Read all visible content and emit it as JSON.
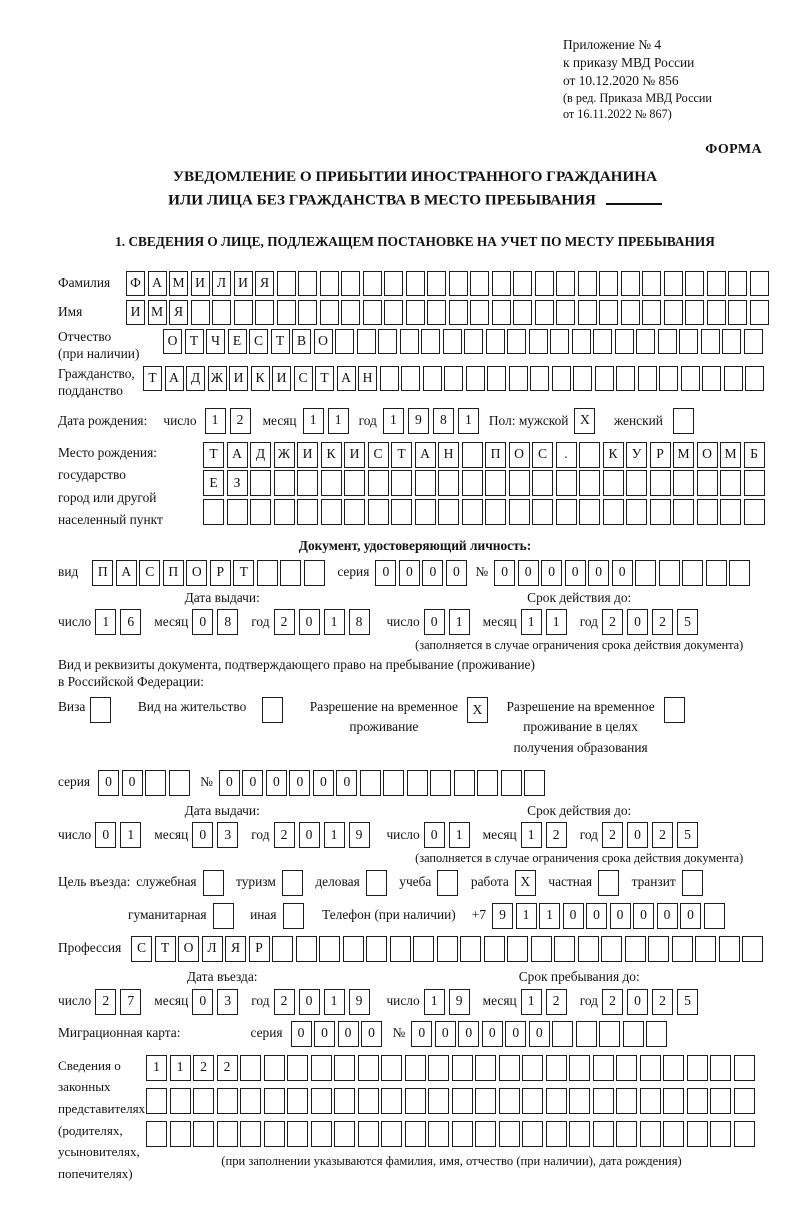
{
  "header": {
    "appendix": [
      "Приложение № 4",
      "к приказу МВД России",
      "от 10.12.2020 № 856"
    ],
    "amendment": [
      "(в ред. Приказа МВД России",
      "от 16.11.2022 № 867)"
    ],
    "form_label": "ФОРМА"
  },
  "title": {
    "line1": "УВЕДОМЛЕНИЕ О ПРИБЫТИИ ИНОСТРАННОГО ГРАЖДАНИНА",
    "line2": "ИЛИ ЛИЦА БЕЗ ГРАЖДАНСТВА В МЕСТО ПРЕБЫВАНИЯ"
  },
  "section1": {
    "heading": "1. СВЕДЕНИЯ О ЛИЦЕ, ПОДЛЕЖАЩЕМ ПОСТАНОВКЕ НА УЧЕТ ПО МЕСТУ ПРЕБЫВАНИЯ"
  },
  "date_labels": {
    "day": "число",
    "month": "месяц",
    "year": "год"
  },
  "person": {
    "surname": {
      "label": "Фамилия",
      "cells": {
        "value": "ФАМИЛИЯ",
        "length": 30
      }
    },
    "given_name": {
      "label": "Имя",
      "cells": {
        "value": "ИМЯ",
        "length": 30
      }
    },
    "patronymic": {
      "label": "Отчество",
      "label2": "(при наличии)",
      "cells": {
        "value": "ОТЧЕСТВО",
        "length": 28
      }
    },
    "citizenship": {
      "label": "Гражданство,",
      "label2": "подданство",
      "cells": {
        "value": "ТАДЖИКИСТАН",
        "length": 29
      }
    },
    "birth_date_label": "Дата рождения:",
    "birth_date": {
      "day": {
        "value": "12",
        "length": 2
      },
      "month": {
        "value": "11",
        "length": 2
      },
      "year": {
        "value": "1981",
        "length": 4
      }
    },
    "sex": {
      "male_label": "Пол: мужской",
      "male_mark": {
        "value": "X",
        "length": 1
      },
      "female_label": "женский",
      "female_mark": {
        "value": "",
        "length": 1
      }
    },
    "birth_place": {
      "labels": [
        "Место рождения:",
        "государство",
        "город или другой",
        "населенный пункт"
      ],
      "rows": [
        {
          "value": "ТАДЖИКИСТАН ПОС. КУРМОМБ",
          "length": 24
        },
        {
          "value": "ЕЗ",
          "length": 24
        },
        {
          "value": "",
          "length": 24
        }
      ]
    }
  },
  "identity_doc": {
    "heading": "Документ, удостоверяющий личность:",
    "kind_label": "вид",
    "kind": {
      "value": "ПАСПОРТ",
      "length": 10
    },
    "series_label": "серия",
    "series": {
      "value": "0000",
      "length": 4
    },
    "number_label": "№",
    "number": {
      "value": "000000",
      "length": 11
    },
    "issue_heading": "Дата выдачи:",
    "issue": {
      "day": {
        "value": "16",
        "length": 2
      },
      "month": {
        "value": "08",
        "length": 2
      },
      "year": {
        "value": "2018",
        "length": 4
      }
    },
    "expiry_heading": "Срок действия до:",
    "expiry": {
      "day": {
        "value": "01",
        "length": 2
      },
      "month": {
        "value": "11",
        "length": 2
      },
      "year": {
        "value": "2025",
        "length": 4
      }
    },
    "expiry_note": "(заполняется в случае ограничения срока действия документа)"
  },
  "residence_doc": {
    "intro1": "Вид и реквизиты документа, подтверждающего право на пребывание (проживание)",
    "intro2": "в Российской Федерации:",
    "visa_label": "Виза",
    "visa_mark": {
      "value": "",
      "length": 1
    },
    "permit_label": "Вид на жительство",
    "permit_mark": {
      "value": "",
      "length": 1
    },
    "rvp_label1": "Разрешение на временное",
    "rvp_label2": "проживание",
    "rvp_mark": {
      "value": "X",
      "length": 1
    },
    "rvp_edu_label1": "Разрешение на временное",
    "rvp_edu_label2": "проживание в целях",
    "rvp_edu_label3": "получения образования",
    "rvp_edu_mark": {
      "value": "",
      "length": 1
    },
    "series_label": "серия",
    "series": {
      "value": "00",
      "length": 4
    },
    "number_label": "№",
    "number": {
      "value": "000000",
      "length": 14
    },
    "issue_heading": "Дата выдачи:",
    "issue": {
      "day": {
        "value": "01",
        "length": 2
      },
      "month": {
        "value": "03",
        "length": 2
      },
      "year": {
        "value": "2019",
        "length": 4
      }
    },
    "expiry_heading": "Срок действия до:",
    "expiry": {
      "day": {
        "value": "01",
        "length": 2
      },
      "month": {
        "value": "12",
        "length": 2
      },
      "year": {
        "value": "2025",
        "length": 4
      }
    },
    "expiry_note": "(заполняется в случае ограничения срока действия документа)"
  },
  "visit": {
    "purpose_label": "Цель въезда:",
    "purposes": [
      {
        "label": "служебная",
        "mark": {
          "value": "",
          "length": 1
        }
      },
      {
        "label": "туризм",
        "mark": {
          "value": "",
          "length": 1
        }
      },
      {
        "label": "деловая",
        "mark": {
          "value": "",
          "length": 1
        }
      },
      {
        "label": "учеба",
        "mark": {
          "value": "",
          "length": 1
        }
      },
      {
        "label": "работа",
        "mark": {
          "value": "X",
          "length": 1
        }
      },
      {
        "label": "частная",
        "mark": {
          "value": "",
          "length": 1
        }
      },
      {
        "label": "транзит",
        "mark": {
          "value": "",
          "length": 1
        }
      },
      {
        "label": "гуманитарная",
        "mark": {
          "value": "",
          "length": 1
        }
      },
      {
        "label": "иная",
        "mark": {
          "value": "",
          "length": 1
        }
      }
    ],
    "phone_label": "Телефон (при наличии)",
    "phone_prefix": "+7",
    "phone": {
      "value": "911000000",
      "length": 10
    },
    "profession_label": "Профессия",
    "profession": {
      "value": "СТОЛЯР",
      "length": 27
    },
    "entry_heading": "Дата въезда:",
    "entry": {
      "day": {
        "value": "27",
        "length": 2
      },
      "month": {
        "value": "03",
        "length": 2
      },
      "year": {
        "value": "2019",
        "length": 4
      }
    },
    "stay_heading": "Срок пребывания до:",
    "stay": {
      "day": {
        "value": "19",
        "length": 2
      },
      "month": {
        "value": "12",
        "length": 2
      },
      "year": {
        "value": "2025",
        "length": 4
      }
    },
    "migration_card_label": "Миграционная карта:",
    "mc_series_label": "серия",
    "mc_series": {
      "value": "0000",
      "length": 4
    },
    "mc_number_label": "№",
    "mc_number": {
      "value": "000000",
      "length": 11
    }
  },
  "representatives": {
    "labels": [
      "Сведения о",
      "законных",
      "представителях",
      "(родителях,",
      "усыновителях,",
      "попечителях)"
    ],
    "rows": [
      {
        "value": "1122",
        "length": 26
      },
      {
        "value": "",
        "length": 26
      },
      {
        "value": "",
        "length": 26
      }
    ],
    "note": "(при заполнении указываются фамилия, имя, отчество (при наличии), дата рождения)"
  }
}
